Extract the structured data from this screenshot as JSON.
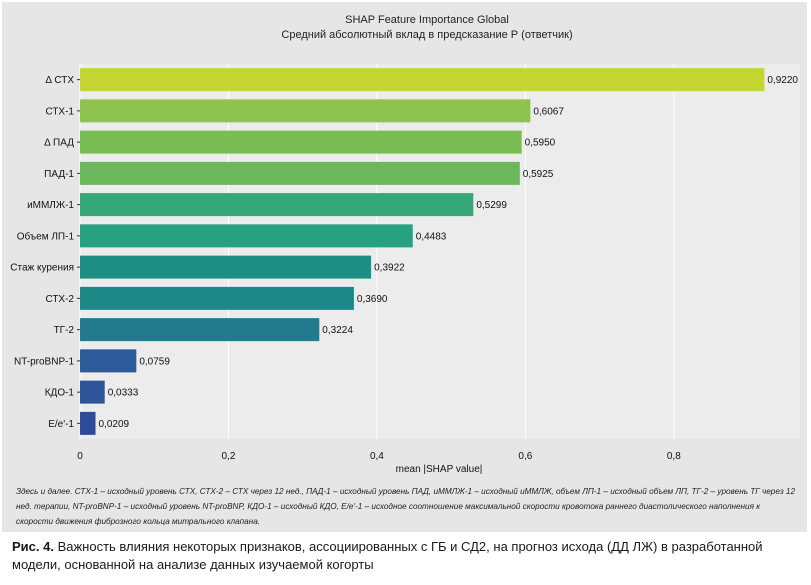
{
  "chart_data": {
    "type": "bar",
    "orientation": "horizontal",
    "title": "SHAP Feature Importance Global",
    "subtitle": "Средний абсолютный вклад в предсказание Р (ответчик)",
    "xlabel": "mean |SHAP value|",
    "ylabel": "",
    "xlim": [
      0,
      0.97
    ],
    "xticks": [
      0,
      0.2,
      0.4,
      0.6,
      0.8
    ],
    "xtick_labels": [
      "0",
      "0,2",
      "0,4",
      "0,6",
      "0,8"
    ],
    "grid": true,
    "categories": [
      "Δ СТХ",
      "СТХ-1",
      "Δ ПАД",
      "ПАД-1",
      "иММЛЖ-1",
      "Объем ЛП-1",
      "Стаж курения",
      "СТХ-2",
      "ТГ-2",
      "NT-proBNP-1",
      "КДО-1",
      "Е/е'-1"
    ],
    "values": [
      0.922,
      0.6067,
      0.595,
      0.5925,
      0.5299,
      0.4483,
      0.3922,
      0.369,
      0.3224,
      0.0759,
      0.0333,
      0.0209
    ],
    "value_labels": [
      "0,9220",
      "0,6067",
      "0,5950",
      "0,5925",
      "0,5299",
      "0,4483",
      "0,3922",
      "0,3690",
      "0,3224",
      "0,0759",
      "0,0333",
      "0,0209"
    ],
    "colors": [
      "#c2d531",
      "#8ec34f",
      "#7bbd55",
      "#6ab85b",
      "#36a776",
      "#27a080",
      "#1e8f84",
      "#1c8986",
      "#237a8c",
      "#2d5a99",
      "#2e5598",
      "#2d4b97"
    ]
  },
  "footnote": "Здесь и далее. СТХ-1 – исходный уровень СТХ, СТХ-2 – СТХ через 12 нед., ПАД-1 – исходный уровень ПАД, иММЛЖ-1 – исходный иММЛЖ, объем ЛП-1 – исходный объем ЛП, ТГ-2 – уровень ТГ через 12 нед. терапии, NT-proBNP-1 – исходный уровень NT-proBNP, КДО-1 – исходный КДО, Е/е'-1 – исходное соотношение максимальной скорости кровотока раннего диастолического наполнения к скорости движения фиброзного кольца митрального клапана.",
  "caption": {
    "label": "Рис. 4.",
    "text": " Важность влияния некоторых признаков, ассоциированных с ГБ и СД2, на прогноз исхода (ДД ЛЖ) в разработанной модели, основанной на анализе данных изучаемой когорты"
  }
}
